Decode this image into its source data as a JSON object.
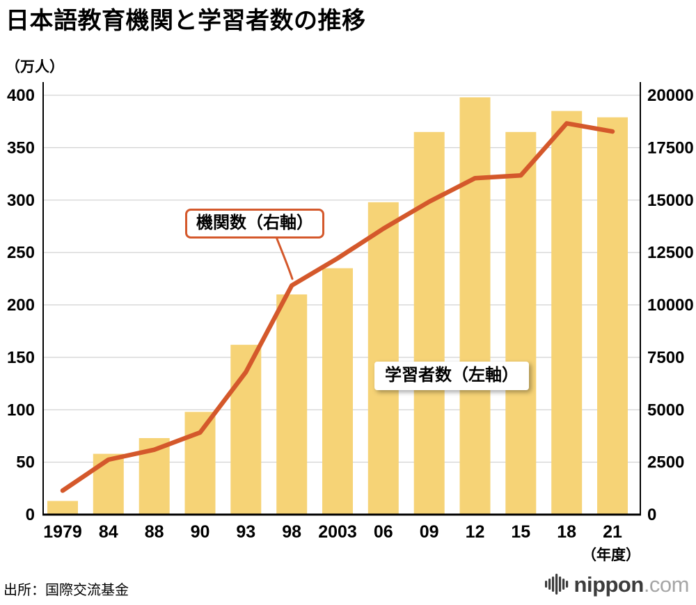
{
  "title": "日本語教育機関と学習者数の推移",
  "left_axis_unit": "（万人）",
  "x_axis_unit": "（年度）",
  "annotations": {
    "line_label": "機関数（右軸）",
    "bar_label": "学習者数（左軸）"
  },
  "footer": {
    "source": "出所：国際交流基金",
    "logo_main": "nippon",
    "logo_suffix": ".com"
  },
  "chart_data": {
    "type": "bar",
    "subtype": "bar+line combo, dual axis",
    "title": "日本語教育機関と学習者数の推移",
    "categories": [
      "1979",
      "84",
      "88",
      "90",
      "93",
      "98",
      "2003",
      "06",
      "09",
      "12",
      "15",
      "18",
      "21"
    ],
    "x_axis_label": "（年度）",
    "series": [
      {
        "name": "学習者数（左軸）",
        "type": "bar",
        "axis": "left",
        "unit": "万人",
        "values": [
          13,
          58,
          73,
          98,
          162,
          210,
          235,
          298,
          365,
          398,
          365,
          385,
          379
        ]
      },
      {
        "name": "機関数（右軸）",
        "type": "line",
        "axis": "right",
        "unit": "機関",
        "values": [
          1145,
          2620,
          3096,
          3917,
          6800,
          10930,
          12222,
          13639,
          14925,
          16046,
          16179,
          18661,
          18272
        ]
      }
    ],
    "left_axis": {
      "label": "（万人）",
      "min": 0,
      "max": 400,
      "ticks": [
        0,
        50,
        100,
        150,
        200,
        250,
        300,
        350,
        400
      ]
    },
    "right_axis": {
      "min": 0,
      "max": 20000,
      "ticks": [
        0,
        2500,
        5000,
        7500,
        10000,
        12500,
        15000,
        17500,
        20000
      ]
    },
    "grid": true,
    "legend_position": "inline-annotations",
    "colors": {
      "bar": "#F6D376",
      "line": "#D4582B",
      "grid": "#c8c8c8",
      "axis": "#000000"
    }
  }
}
